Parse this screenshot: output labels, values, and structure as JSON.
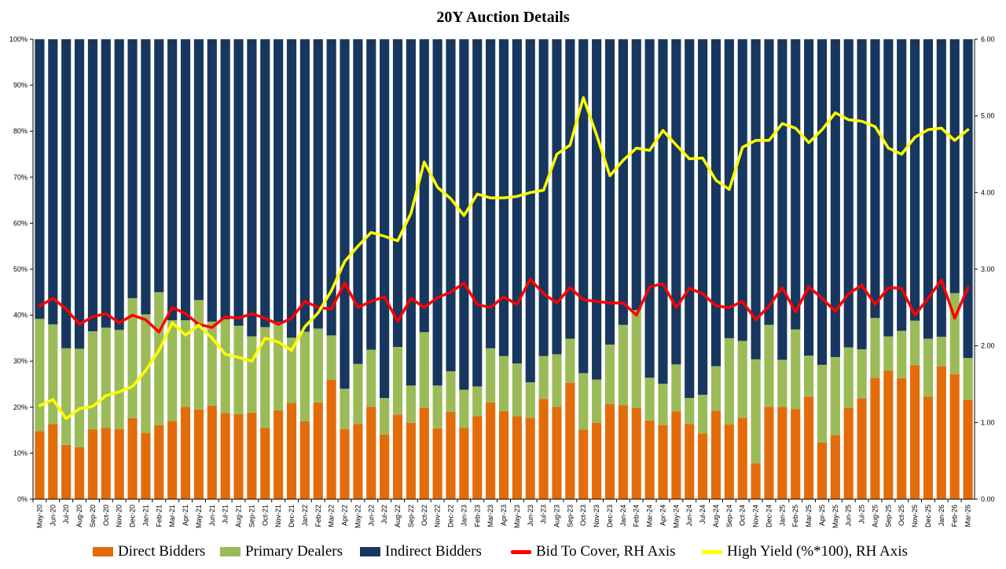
{
  "chart_data": {
    "type": "bar",
    "stacked": true,
    "title": "20Y Auction Details",
    "categories": [
      "May-20",
      "Jun-20",
      "Jul-20",
      "Aug-20",
      "Sep-20",
      "Oct-20",
      "Nov-20",
      "Dec-20",
      "Jan-21",
      "Feb-21",
      "Mar-21",
      "Apr-21",
      "May-21",
      "Jun-21",
      "Jul-21",
      "Aug-21",
      "Sep-21",
      "Oct-21",
      "Nov-21",
      "Dec-21",
      "Jan-22",
      "Feb-22",
      "Mar-22",
      "Apr-22",
      "May-22",
      "Jun-22",
      "Jul-22",
      "Aug-22",
      "Sep-22",
      "Oct-22",
      "Nov-22",
      "Dec-22",
      "Jan-23",
      "Feb-23",
      "Mar-23",
      "Apr-23",
      "May-23",
      "Jun-23",
      "Jul-23",
      "Aug-23",
      "Sep-23",
      "Oct-23",
      "Nov-23",
      "Dec-23",
      "Jan-24",
      "Feb-24",
      "Mar-24",
      "Apr-24",
      "May-24",
      "Jun-24",
      "Jul-24",
      "Aug-24",
      "Sep-24",
      "Oct-24",
      "Nov-24",
      "Dec-24",
      "Jan-25",
      "Feb-25",
      "Mar-25",
      "Apr-25",
      "May-25",
      "Jun-25",
      "Jul-25",
      "Aug-25",
      "Sep-25",
      "Oct-25",
      "Nov-25",
      "Dec-25",
      "Jan-26",
      "Feb-26",
      "Mar-26"
    ],
    "series": [
      {
        "name": "Direct Bidders",
        "axis": "left",
        "kind": "bar",
        "color": "#E36C0A",
        "values": [
          14.8,
          16.3,
          11.8,
          11.3,
          15.2,
          15.5,
          15.2,
          17.6,
          14.4,
          16.1,
          17.0,
          20.1,
          19.5,
          20.3,
          18.7,
          18.5,
          18.8,
          15.5,
          19.3,
          20.9,
          16.9,
          21.0,
          26.0,
          15.2,
          16.3,
          20.1,
          14.0,
          18.4,
          16.6,
          19.9,
          15.4,
          19.0,
          15.5,
          18.0,
          21.0,
          19.1,
          18.0,
          17.7,
          21.8,
          20.1,
          25.3,
          15.1,
          16.6,
          20.7,
          20.4,
          19.8,
          17.1,
          16.1,
          19.1,
          16.3,
          14.3,
          19.2,
          16.2,
          17.7,
          7.8,
          20.1,
          20.1,
          19.6,
          22.3,
          12.3,
          13.9,
          19.9,
          21.9,
          26.4,
          27.9,
          26.3,
          29.1,
          22.3,
          28.9,
          27.2,
          21.6
        ]
      },
      {
        "name": "Primary Dealers",
        "axis": "left",
        "kind": "bar",
        "color": "#9BBB59",
        "values": [
          24.4,
          21.7,
          21.0,
          21.4,
          21.3,
          21.8,
          21.6,
          26.1,
          25.8,
          28.9,
          21.9,
          18.8,
          23.8,
          18.3,
          20.4,
          19.2,
          16.6,
          21.9,
          19.2,
          14.2,
          19.5,
          16.1,
          9.6,
          8.8,
          13.1,
          12.4,
          8.0,
          14.7,
          8.1,
          16.4,
          9.3,
          8.8,
          8.3,
          6.5,
          11.8,
          12.0,
          11.5,
          7.7,
          9.3,
          11.4,
          9.6,
          12.3,
          9.4,
          12.9,
          17.5,
          21.3,
          9.3,
          9.0,
          10.2,
          5.7,
          8.4,
          9.7,
          18.8,
          16.7,
          22.6,
          17.8,
          10.2,
          17.3,
          8.9,
          16.9,
          17.0,
          13.1,
          10.7,
          13.0,
          7.5,
          10.3,
          9.7,
          12.6,
          6.4,
          17.6,
          9.1
        ]
      },
      {
        "name": "Indirect Bidders",
        "axis": "left",
        "kind": "bar",
        "color": "#17375E",
        "values": [
          60.8,
          62.0,
          67.2,
          67.3,
          63.5,
          62.7,
          63.2,
          56.3,
          59.8,
          55.0,
          61.1,
          61.1,
          56.7,
          61.4,
          60.9,
          62.3,
          64.6,
          62.6,
          61.5,
          64.9,
          63.6,
          62.9,
          64.4,
          76.0,
          70.6,
          67.5,
          78.0,
          66.9,
          75.3,
          63.7,
          75.3,
          72.2,
          76.2,
          75.5,
          67.2,
          68.9,
          70.5,
          74.6,
          68.9,
          68.5,
          65.1,
          72.6,
          74.0,
          66.4,
          62.1,
          58.9,
          73.6,
          74.9,
          70.7,
          78.0,
          77.3,
          71.1,
          65.0,
          65.6,
          69.6,
          62.1,
          69.7,
          63.1,
          68.8,
          70.8,
          69.1,
          67.0,
          67.4,
          60.6,
          64.6,
          63.4,
          61.2,
          65.1,
          64.7,
          55.2,
          69.3
        ]
      },
      {
        "name": "Bid To Cover, RH Axis",
        "axis": "right",
        "kind": "line",
        "color": "#FF0000",
        "values": [
          2.52,
          2.62,
          2.48,
          2.28,
          2.38,
          2.42,
          2.3,
          2.4,
          2.34,
          2.18,
          2.5,
          2.42,
          2.28,
          2.24,
          2.38,
          2.36,
          2.42,
          2.36,
          2.28,
          2.36,
          2.58,
          2.5,
          2.48,
          2.82,
          2.5,
          2.58,
          2.64,
          2.32,
          2.62,
          2.5,
          2.63,
          2.7,
          2.82,
          2.54,
          2.5,
          2.64,
          2.54,
          2.87,
          2.68,
          2.56,
          2.76,
          2.6,
          2.58,
          2.56,
          2.56,
          2.4,
          2.77,
          2.81,
          2.5,
          2.75,
          2.68,
          2.52,
          2.5,
          2.58,
          2.34,
          2.52,
          2.76,
          2.44,
          2.77,
          2.62,
          2.45,
          2.68,
          2.79,
          2.54,
          2.76,
          2.75,
          2.4,
          2.62,
          2.86,
          2.36,
          2.76
        ]
      },
      {
        "name": "High Yield (%*100), RH Axis",
        "axis": "right",
        "kind": "line",
        "color": "#FFFF00",
        "values": [
          1.22,
          1.3,
          1.05,
          1.18,
          1.21,
          1.35,
          1.4,
          1.47,
          1.68,
          1.94,
          2.3,
          2.14,
          2.27,
          2.1,
          1.89,
          1.85,
          1.8,
          2.1,
          2.05,
          1.94,
          2.25,
          2.43,
          2.72,
          3.1,
          3.3,
          3.48,
          3.43,
          3.37,
          3.73,
          4.4,
          4.07,
          3.92,
          3.7,
          3.98,
          3.93,
          3.93,
          3.95,
          4.0,
          4.03,
          4.5,
          4.62,
          5.24,
          4.75,
          4.22,
          4.42,
          4.58,
          4.55,
          4.81,
          4.62,
          4.44,
          4.45,
          4.16,
          4.04,
          4.59,
          4.68,
          4.68,
          4.9,
          4.84,
          4.65,
          4.82,
          5.04,
          4.95,
          4.93,
          4.86,
          4.58,
          4.5,
          4.72,
          4.82,
          4.84,
          4.68,
          4.82
        ]
      }
    ],
    "y_left": {
      "range": [
        0,
        100
      ],
      "ticks": [
        "0%",
        "10%",
        "20%",
        "30%",
        "40%",
        "50%",
        "60%",
        "70%",
        "80%",
        "90%",
        "100%"
      ]
    },
    "y_right": {
      "range": [
        0,
        6
      ],
      "ticks": [
        "0.00",
        "1.00",
        "2.00",
        "3.00",
        "4.00",
        "5.00",
        "6.00"
      ]
    },
    "grid": false,
    "legend_position": "bottom"
  }
}
